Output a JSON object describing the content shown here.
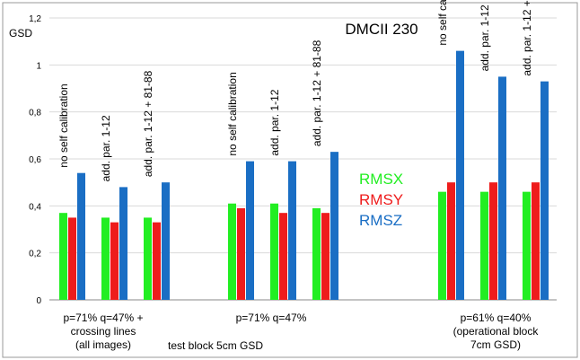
{
  "chart_data": {
    "type": "bar",
    "title": "DMCII 230",
    "ylabel": "GSD",
    "xlabel": "",
    "ylim": [
      0,
      1.2
    ],
    "y_ticks": [
      "0",
      "0,2",
      "0,4",
      "0,6",
      "0,8",
      "1",
      "1,2"
    ],
    "grid": true,
    "legend": {
      "placement": "center-right",
      "entries": [
        {
          "name": "RMSX",
          "color": "#22ee22"
        },
        {
          "name": "RMSY",
          "color": "#ee1c1c"
        },
        {
          "name": "RMSZ",
          "color": "#1a6ec4"
        }
      ]
    },
    "series_colors": [
      "#22ee22",
      "#ee1c1c",
      "#1a6ec4"
    ],
    "clusters": [
      {
        "label": "no self calibration",
        "values": [
          0.37,
          0.35,
          0.54
        ]
      },
      {
        "label": "add. par. 1-12",
        "values": [
          0.35,
          0.33,
          0.48
        ]
      },
      {
        "label": "add. par. 1-12 + 81-88",
        "values": [
          0.35,
          0.33,
          0.5
        ]
      },
      {
        "label": "no self calibration",
        "values": [
          0.41,
          0.39,
          0.59
        ]
      },
      {
        "label": "add. par. 1-12",
        "values": [
          0.41,
          0.37,
          0.59
        ]
      },
      {
        "label": "add. par. 1-12 + 81-88",
        "values": [
          0.39,
          0.37,
          0.63
        ]
      },
      {
        "label": "no self calibration",
        "values": [
          0.46,
          0.5,
          1.06
        ]
      },
      {
        "label": "add. par. 1-12",
        "values": [
          0.46,
          0.5,
          0.95
        ]
      },
      {
        "label": "add. par. 1-12 + 81-88",
        "values": [
          0.46,
          0.5,
          0.93
        ]
      }
    ],
    "group_labels": [
      {
        "lines": [
          "p=71% q=47% +",
          "crossing lines",
          "(all images)"
        ]
      },
      {
        "lines": [
          "p=71% q=47%"
        ]
      },
      {
        "lines": [
          "p=61% q=40%",
          "(operational block",
          "7cm GSD)"
        ]
      }
    ],
    "annotation": "test block 5cm GSD"
  }
}
